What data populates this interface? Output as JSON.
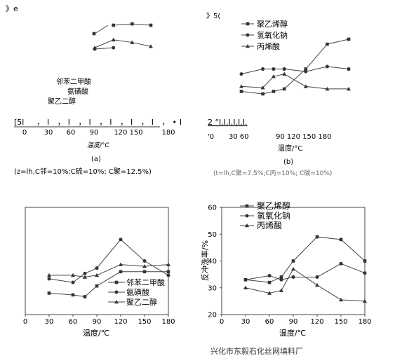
{
  "chart_data": [
    {
      "id": "a-fragment",
      "type": "line",
      "x": [
        90,
        120,
        150,
        180
      ],
      "series": [
        {
          "name": "邻苯二甲酸",
          "marker": "square",
          "values": [
            null,
            41,
            41.5,
            41
          ]
        },
        {
          "name": "氨磺酸",
          "marker": "circle",
          "values": [
            32,
            32.5,
            null,
            null
          ]
        },
        {
          "name": "聚乙二醇",
          "marker": "triangle",
          "values": [
            32.5,
            35.5,
            34.5,
            33
          ]
        }
      ],
      "legend": [
        "邻苯二甲酸",
        "氨磺酸",
        "聚乙二醇"
      ],
      "tick_text": "[5l",
      "tick_text_2": "，I ，I ，I ，I ，I ，I ，•I",
      "x_ticks": [
        "0",
        "30",
        "60",
        "90",
        "120 150",
        "180"
      ],
      "xlabel": "温度/°C",
      "panel_label": "(a)",
      "condition_note": "(z=lh,C邻=10%;C硫=10%;    C聚=12.5%)",
      "corner_mark": "》e"
    },
    {
      "id": "b-fragment",
      "type": "line",
      "x": [
        30,
        60,
        75,
        90,
        120,
        150,
        180
      ],
      "series": [
        {
          "name": "聚乙烯醇",
          "marker": "square",
          "values": [
            26,
            25,
            26,
            27,
            35,
            45,
            47
          ]
        },
        {
          "name": "氢氧化钠",
          "marker": "circle",
          "values": [
            33,
            35,
            35,
            35,
            34,
            36,
            35
          ]
        },
        {
          "name": "丙烯酸",
          "marker": "triangle",
          "values": [
            28,
            27.5,
            32,
            33,
            28,
            27,
            27
          ]
        }
      ],
      "legend": [
        "聚乙烯醇",
        "氢氧化钠",
        "丙烯酸"
      ],
      "tick_text": "2 °I.I.I.I.I.I.",
      "x_ticks": [
        "'0",
        "30 60",
        "90 120 150 180"
      ],
      "xlabel": "温度/°C",
      "panel_label": "(b)",
      "condition_note": "(t=lh,C聚=7.5%;C丙=10%;    C碳=10%)",
      "corner_mark": "》5("
    },
    {
      "id": "c",
      "type": "line",
      "x": [
        30,
        60,
        75,
        90,
        120,
        150,
        180
      ],
      "series": [
        {
          "name": "邻苯二甲酸",
          "marker": "square",
          "values": [
            26,
            25.5,
            25,
            28,
            32,
            32,
            32
          ]
        },
        {
          "name": "氨磺酸",
          "marker": "circle",
          "values": [
            30,
            29,
            31.5,
            33,
            41,
            35,
            31
          ]
        },
        {
          "name": "聚乙二醇",
          "marker": "triangle",
          "values": [
            31,
            31,
            30.5,
            31,
            34,
            33.5,
            34
          ]
        }
      ],
      "legend": [
        "邻苯二甲酸",
        "氨磺酸",
        "聚乙二醇"
      ],
      "x_ticks": [
        "0",
        "30",
        "60",
        "90",
        "120",
        "150",
        "180"
      ],
      "xlabel": "温度/℃",
      "xlim": [
        0,
        180
      ],
      "ylim": [
        20,
        50
      ]
    },
    {
      "id": "d",
      "type": "line",
      "x": [
        30,
        60,
        75,
        90,
        120,
        150,
        180
      ],
      "series": [
        {
          "name": "聚乙烯醇",
          "marker": "square",
          "values": [
            33,
            32,
            34,
            40,
            49,
            48,
            40
          ]
        },
        {
          "name": "氢氧化钠",
          "marker": "circle",
          "values": [
            33,
            34.5,
            33,
            34,
            34,
            39,
            35.5
          ]
        },
        {
          "name": "丙烯酸",
          "marker": "triangle",
          "values": [
            30,
            28,
            29,
            37,
            31,
            25.5,
            25
          ]
        }
      ],
      "legend": [
        "聚乙烯醇",
        "氢氧化钠",
        "丙烯酸"
      ],
      "x_ticks": [
        "0",
        "30",
        "60",
        "90",
        "120",
        "150",
        "180"
      ],
      "y_ticks": [
        "20",
        "30",
        "40",
        "50",
        "60"
      ],
      "xlabel": "温度/℃",
      "ylabel": "反冲洗率/%",
      "xlim": [
        0,
        180
      ],
      "ylim": [
        20,
        60
      ]
    }
  ],
  "watermark": "兴化市东毅石化丝网填料厂"
}
